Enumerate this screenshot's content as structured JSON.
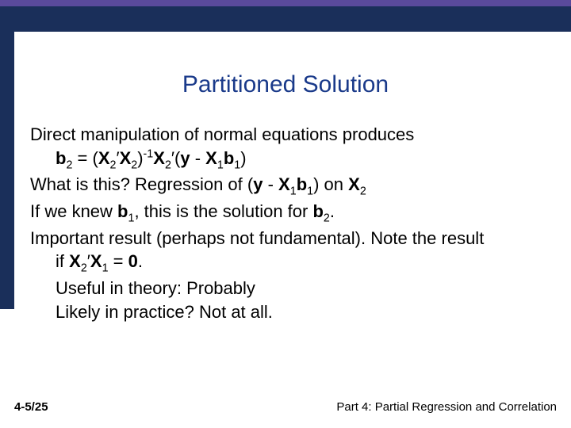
{
  "theme": {
    "accent_purple": "#5a4a9c",
    "accent_navy": "#1a2f5a",
    "title_color": "#1a3a8a",
    "body_color": "#000000",
    "background": "#ffffff",
    "title_fontsize": 30,
    "body_fontsize": 22,
    "footer_fontsize": 15
  },
  "title": "Partitioned Solution",
  "lines": {
    "l1": "Direct manipulation of normal equations produces",
    "eq_b": "b",
    "eq_sub2": "2",
    "eq_eq": "  =  (",
    "eq_X": "X",
    "eq_prime": "′",
    "eq_close_inv_open": ")",
    "eq_neg1": "-1",
    "eq_open_y": "(",
    "eq_y": "y",
    "eq_minus": " - ",
    "eq_sub1": "1",
    "eq_close": ")",
    "l3a": "What is this?   Regression of (",
    "l3b": ") on ",
    "l4a": "If we knew ",
    "l4b": ", this is the solution for ",
    "l4c": ".",
    "l5": "Important result (perhaps not fundamental).  Note the result",
    "l6a": "if ",
    "l6b": " = ",
    "l6c": "0",
    "l7": "Useful in theory: Probably",
    "l8": "Likely in practice?  Not at all."
  },
  "footer": {
    "left": "4-5/25",
    "right": "Part 4: Partial Regression and Correlation"
  }
}
